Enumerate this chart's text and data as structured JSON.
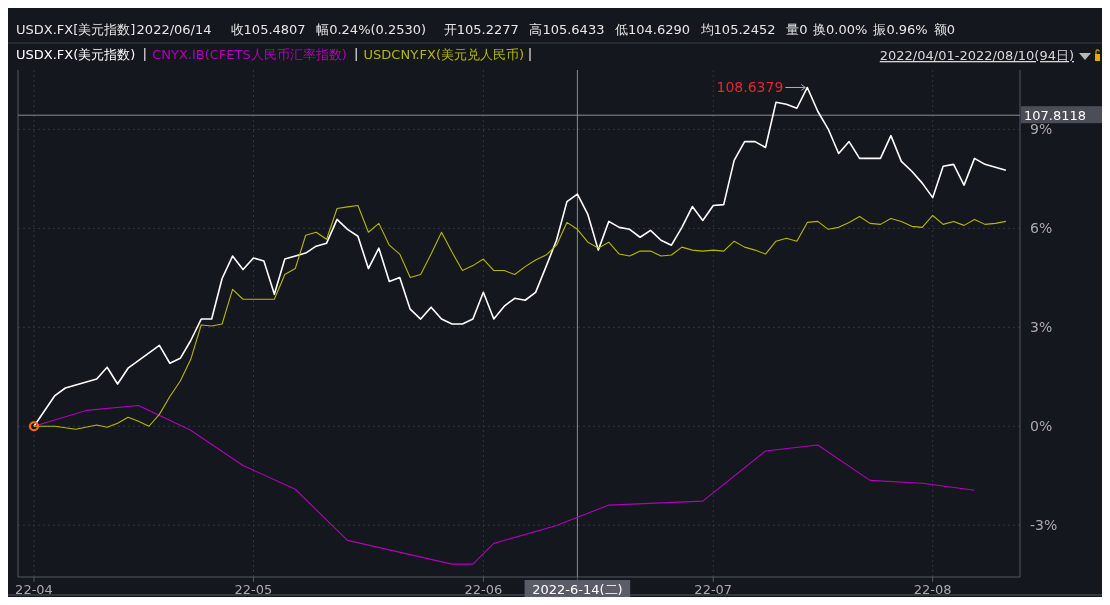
{
  "chart_data": {
    "type": "line",
    "title": "USDX.FX[美元指数]",
    "annotations": [
      "2022/06/14",
      "收105.4807",
      "幅0.24%(0.2530)",
      "开105.2277",
      "高105.6433",
      "低104.6290",
      "均105.2452",
      "量0",
      "换0.00%",
      "振0.96%",
      "额0",
      "2022/04/01-2022/08/10(94日)",
      "107.8118",
      "108.6379"
    ],
    "legend": "top left",
    "grid": true,
    "categories": [
      "22-04",
      null,
      null,
      null,
      null,
      null,
      null,
      null,
      null,
      null,
      null,
      null,
      null,
      null,
      null,
      null,
      null,
      null,
      null,
      null,
      null,
      "22-05",
      null,
      null,
      null,
      null,
      null,
      null,
      null,
      null,
      null,
      null,
      null,
      null,
      null,
      null,
      null,
      null,
      null,
      null,
      null,
      null,
      null,
      "22-06",
      null,
      null,
      null,
      null,
      null,
      null,
      null,
      null,
      "2022-6-14(二)",
      null,
      null,
      null,
      null,
      null,
      null,
      null,
      null,
      null,
      null,
      null,
      null,
      "22-07",
      null,
      null,
      null,
      null,
      null,
      null,
      null,
      null,
      null,
      null,
      null,
      null,
      null,
      null,
      null,
      null,
      null,
      null,
      null,
      null,
      "22-08",
      null,
      null,
      null,
      null,
      null,
      null,
      null
    ],
    "ylim": [
      -4.57,
      10.8
    ],
    "yticks": [
      {
        "value": -3,
        "label": "-3%"
      },
      {
        "value": 0,
        "label": "0%"
      },
      {
        "value": 3,
        "label": "3%"
      },
      {
        "value": 6,
        "label": "6%"
      },
      {
        "value": 9,
        "label": "9%"
      }
    ],
    "ref_lines": [
      {
        "axis": "y",
        "value": 9.43,
        "color": "#8a8d93"
      },
      {
        "axis": "x",
        "value": "2022-6-14(二)",
        "color": "#8a8d93"
      }
    ],
    "series": [
      {
        "name": "USDX.FX(美元指数)",
        "color": "#ffffff",
        "values": [
          0,
          null,
          0.93,
          1.16,
          null,
          null,
          1.43,
          1.79,
          1.28,
          1.76,
          null,
          null,
          2.45,
          1.91,
          2.06,
          2.6,
          3.25,
          3.25,
          4.48,
          5.16,
          4.75,
          5.1,
          5.01,
          4.0,
          5.07,
          null,
          5.25,
          5.46,
          5.55,
          6.27,
          5.97,
          5.76,
          4.78,
          5.4,
          4.39,
          4.51,
          3.55,
          3.25,
          3.61,
          3.25,
          3.1,
          3.1,
          3.25,
          4.06,
          3.25,
          3.64,
          3.88,
          3.82,
          4.06,
          4.84,
          5.64,
          6.81,
          7.04,
          6.42,
          5.34,
          6.21,
          6.03,
          5.97,
          5.73,
          5.94,
          5.64,
          5.49,
          6.03,
          6.66,
          6.24,
          6.69,
          6.72,
          8.06,
          8.63,
          8.63,
          8.45,
          9.82,
          9.76,
          9.64,
          10.27,
          9.55,
          9.01,
          8.27,
          8.63,
          8.12,
          8.12,
          8.12,
          8.81,
          8.03,
          7.73,
          7.37,
          6.93,
          7.88,
          7.94,
          7.31,
          8.12,
          7.94,
          7.85,
          7.76
        ]
      },
      {
        "name": "CNYX.IB(CFETS人民币汇率指数)",
        "color": "#b400bd",
        "values": [
          0,
          null,
          null,
          null,
          null,
          0.48,
          null,
          null,
          null,
          null,
          0.63,
          null,
          null,
          null,
          null,
          -0.12,
          null,
          null,
          null,
          null,
          -1.19,
          null,
          null,
          null,
          null,
          -1.91,
          null,
          null,
          null,
          null,
          -3.46,
          null,
          null,
          null,
          null,
          null,
          null,
          null,
          null,
          null,
          -4.18,
          null,
          -4.18,
          null,
          -3.55,
          null,
          null,
          null,
          null,
          null,
          -3.01,
          null,
          null,
          null,
          null,
          -2.39,
          null,
          null,
          null,
          null,
          null,
          null,
          null,
          null,
          -2.27,
          null,
          null,
          null,
          null,
          null,
          -0.75,
          null,
          null,
          null,
          null,
          -0.57,
          null,
          null,
          null,
          null,
          -1.64,
          null,
          null,
          null,
          null,
          -1.73,
          null,
          null,
          null,
          null,
          -1.94,
          null,
          null,
          null
        ]
      },
      {
        "name": "USDCNY.FX(美元兑人民币)",
        "color": "#b8b800",
        "values": [
          0,
          null,
          0,
          null,
          -0.09,
          null,
          0.04,
          -0.03,
          0.09,
          0.27,
          0.15,
          0,
          0.36,
          0.9,
          1.37,
          2.03,
          3.07,
          3.04,
          3.1,
          4.15,
          3.85,
          3.85,
          3.85,
          3.85,
          4.6,
          4.78,
          5.79,
          5.88,
          5.67,
          6.6,
          6.65,
          6.69,
          5.88,
          6.15,
          5.49,
          5.22,
          4.51,
          4.6,
          5.22,
          5.88,
          5.28,
          4.72,
          4.87,
          5.07,
          4.72,
          4.72,
          4.6,
          4.84,
          5.04,
          5.19,
          5.49,
          6.18,
          5.97,
          5.58,
          5.4,
          5.58,
          5.22,
          5.16,
          5.31,
          5.31,
          5.16,
          5.19,
          5.43,
          5.34,
          5.31,
          5.34,
          5.31,
          5.61,
          5.43,
          5.34,
          5.22,
          5.61,
          5.7,
          5.61,
          6.18,
          6.21,
          5.97,
          6.03,
          6.18,
          6.36,
          6.15,
          6.12,
          6.3,
          6.21,
          6.06,
          6.03,
          6.39,
          6.12,
          6.21,
          6.09,
          6.27,
          6.12,
          6.15,
          6.21
        ]
      }
    ]
  }
}
